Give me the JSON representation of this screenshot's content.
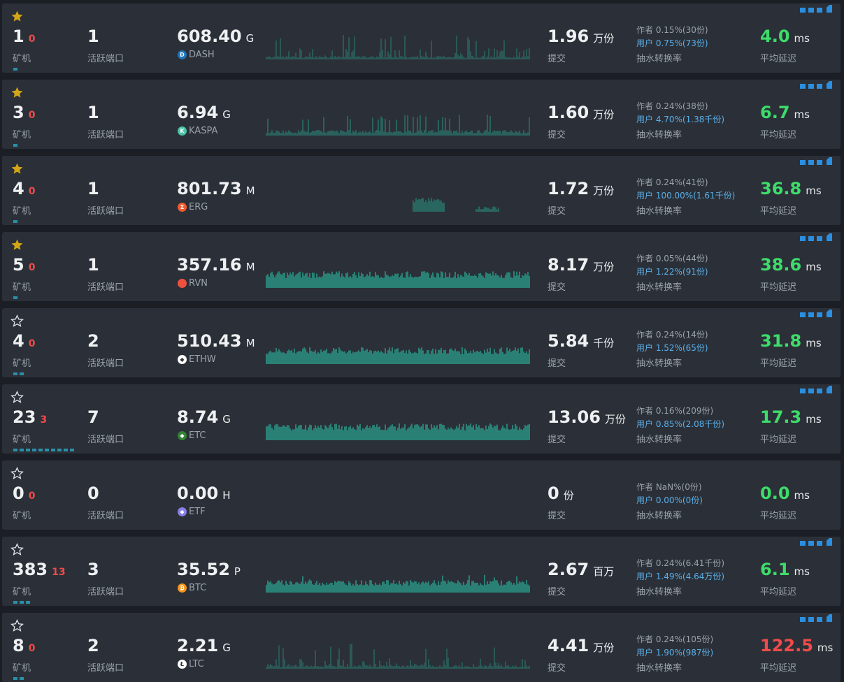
{
  "labels": {
    "miners": "矿机",
    "ports": "活跃端口",
    "submit": "提交",
    "fee_rate": "抽水转换率",
    "latency": "平均延迟",
    "ms": "ms"
  },
  "colors": {
    "latency_good": "#3ddc6a",
    "latency_bad": "#f04b4b",
    "fee_user": "#5aaee8",
    "star_filled": "#d4a516",
    "chart_bar": "#2a8a7c"
  },
  "rows": [
    {
      "starred": true,
      "workers": "1",
      "offline": "0",
      "ports": "1",
      "hashrate": "608.40",
      "hash_unit": "G",
      "coin": "DASH",
      "coin_icon": "dash-icon",
      "coin_color": "#1c75bc",
      "submit": "1.96",
      "submit_unit": "万份",
      "author_fee": "作者 0.15%(30份)",
      "user_fee": "用户 0.75%(73份)",
      "latency": "4.0",
      "latency_status": "good",
      "miner_dashes": 1,
      "chart_pattern": "sparse",
      "has_signal": true
    },
    {
      "starred": true,
      "workers": "3",
      "offline": "0",
      "ports": "1",
      "hashrate": "6.94",
      "hash_unit": "G",
      "coin": "KASPA",
      "coin_icon": "kaspa-icon",
      "coin_color": "#49c4a7",
      "submit": "1.60",
      "submit_unit": "万份",
      "author_fee": "作者 0.24%(38份)",
      "user_fee": "用户 4.70%(1.38千份)",
      "latency": "6.7",
      "latency_status": "good",
      "miner_dashes": 1,
      "chart_pattern": "spiky",
      "has_signal": true
    },
    {
      "starred": true,
      "workers": "4",
      "offline": "0",
      "ports": "1",
      "hashrate": "801.73",
      "hash_unit": "M",
      "coin": "ERG",
      "coin_icon": "erg-icon",
      "coin_color": "#f25a30",
      "submit": "1.72",
      "submit_unit": "万份",
      "author_fee": "作者 0.24%(41份)",
      "user_fee": "用户 100.00%(1.61千份)",
      "latency": "36.8",
      "latency_status": "good",
      "miner_dashes": 1,
      "chart_pattern": "cluster",
      "has_signal": true
    },
    {
      "starred": true,
      "workers": "5",
      "offline": "0",
      "ports": "1",
      "hashrate": "357.16",
      "hash_unit": "M",
      "coin": "RVN",
      "coin_icon": "rvn-icon",
      "coin_color": "#f0513f",
      "submit": "8.17",
      "submit_unit": "万份",
      "author_fee": "作者 0.05%(44份)",
      "user_fee": "用户 1.22%(91份)",
      "latency": "38.6",
      "latency_status": "good",
      "miner_dashes": 1,
      "chart_pattern": "dense",
      "has_signal": true
    },
    {
      "starred": false,
      "workers": "4",
      "offline": "0",
      "ports": "2",
      "hashrate": "510.43",
      "hash_unit": "M",
      "coin": "ETHW",
      "coin_icon": "ethw-icon",
      "coin_color": "#ffffff",
      "submit": "5.84",
      "submit_unit": "千份",
      "author_fee": "作者 0.24%(14份)",
      "user_fee": "用户 1.52%(65份)",
      "latency": "31.8",
      "latency_status": "good",
      "miner_dashes": 2,
      "chart_pattern": "dense",
      "has_signal": true
    },
    {
      "starred": false,
      "workers": "23",
      "offline": "3",
      "ports": "7",
      "hashrate": "8.74",
      "hash_unit": "G",
      "coin": "ETC",
      "coin_icon": "etc-icon",
      "coin_color": "#328332",
      "submit": "13.06",
      "submit_unit": "万份",
      "author_fee": "作者 0.16%(209份)",
      "user_fee": "用户 0.85%(2.08千份)",
      "latency": "17.3",
      "latency_status": "good",
      "miner_dashes": 10,
      "chart_pattern": "dense",
      "has_signal": true
    },
    {
      "starred": false,
      "workers": "0",
      "offline": "0",
      "ports": "0",
      "hashrate": "0.00",
      "hash_unit": "H",
      "coin": "ETF",
      "coin_icon": "etf-icon",
      "coin_color": "#8a7ee8",
      "submit": "0",
      "submit_unit": "份",
      "author_fee": "作者 NaN%(0份)",
      "user_fee": "用户 0.00%(0份)",
      "latency": "0.0",
      "latency_status": "good",
      "miner_dashes": 0,
      "chart_pattern": "none",
      "has_signal": false
    },
    {
      "starred": false,
      "workers": "383",
      "offline": "13",
      "ports": "3",
      "hashrate": "35.52",
      "hash_unit": "P",
      "coin": "BTC",
      "coin_icon": "btc-icon",
      "coin_color": "#f7931a",
      "submit": "2.67",
      "submit_unit": "百万",
      "author_fee": "作者 0.24%(6.41千份)",
      "user_fee": "用户 1.49%(4.64万份)",
      "latency": "6.1",
      "latency_status": "good",
      "miner_dashes": 3,
      "chart_pattern": "dense-low",
      "has_signal": true
    },
    {
      "starred": false,
      "workers": "8",
      "offline": "0",
      "ports": "2",
      "hashrate": "2.21",
      "hash_unit": "G",
      "coin": "LTC",
      "coin_icon": "ltc-icon",
      "coin_color": "#ffffff",
      "submit": "4.41",
      "submit_unit": "万份",
      "author_fee": "作者 0.24%(105份)",
      "user_fee": "用户 1.90%(987份)",
      "latency": "122.5",
      "latency_status": "bad",
      "miner_dashes": 2,
      "chart_pattern": "sparse",
      "has_signal": true
    }
  ]
}
